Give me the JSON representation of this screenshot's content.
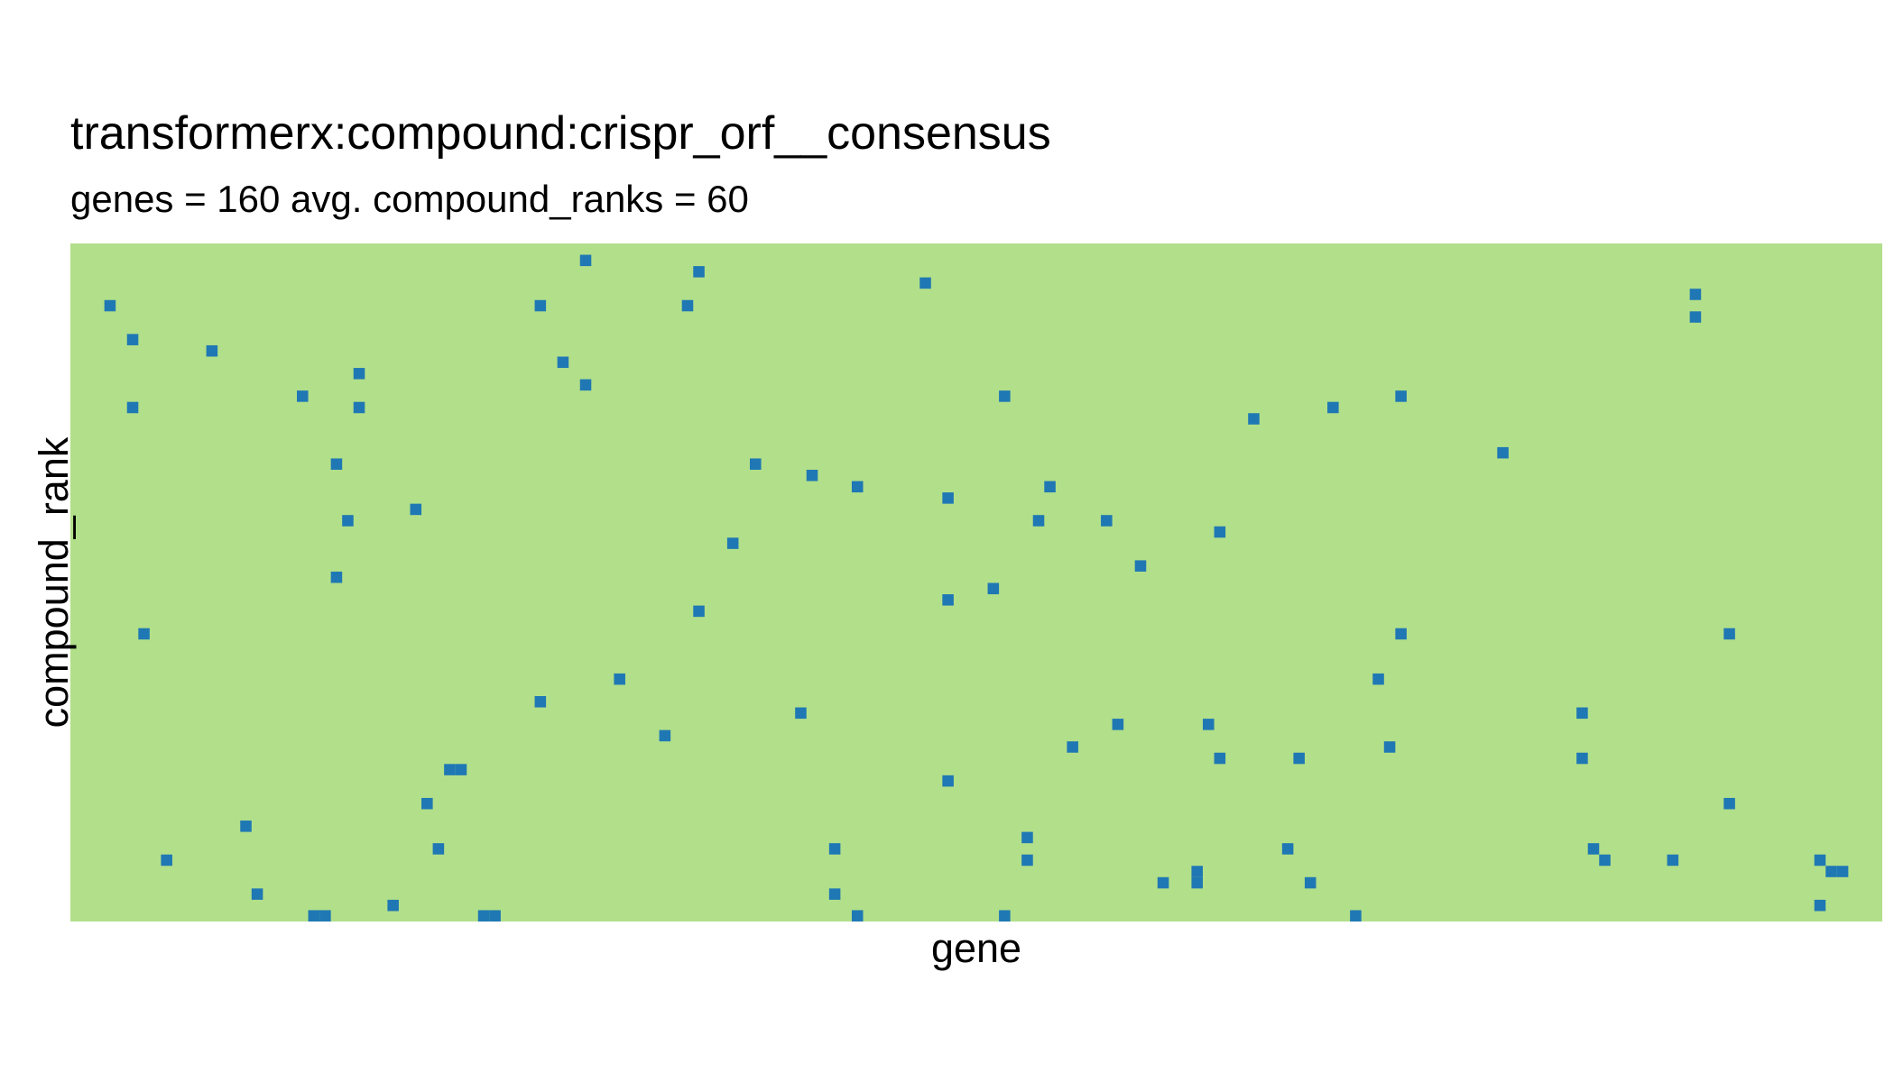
{
  "title": "transformerx:compound:crispr_orf__consensus",
  "subtitle": "genes = 160 avg. compound_ranks = 60",
  "chart_data": {
    "type": "heatmap",
    "title": "transformerx:compound:crispr_orf__consensus",
    "subtitle": "genes = 160 avg. compound_ranks = 60",
    "xlabel": "gene",
    "ylabel": "compound_rank",
    "x_range": [
      1,
      160
    ],
    "y_range": [
      1,
      60
    ],
    "grid": false,
    "legend": "none",
    "colors": {
      "background": "#b2df8a",
      "hit": "#1f78b4"
    },
    "hits": [
      [
        46,
        2
      ],
      [
        56,
        3
      ],
      [
        76,
        4
      ],
      [
        4,
        6
      ],
      [
        42,
        6
      ],
      [
        55,
        6
      ],
      [
        144,
        5
      ],
      [
        144,
        7
      ],
      [
        6,
        9
      ],
      [
        13,
        10
      ],
      [
        44,
        11
      ],
      [
        26,
        12
      ],
      [
        46,
        13
      ],
      [
        6,
        15
      ],
      [
        21,
        14
      ],
      [
        26,
        15
      ],
      [
        83,
        14
      ],
      [
        118,
        14
      ],
      [
        112,
        15
      ],
      [
        105,
        16
      ],
      [
        24,
        20
      ],
      [
        61,
        20
      ],
      [
        66,
        21
      ],
      [
        127,
        19
      ],
      [
        70,
        22
      ],
      [
        87,
        22
      ],
      [
        78,
        23
      ],
      [
        31,
        24
      ],
      [
        25,
        25
      ],
      [
        86,
        25
      ],
      [
        92,
        25
      ],
      [
        102,
        26
      ],
      [
        59,
        27
      ],
      [
        95,
        29
      ],
      [
        24,
        30
      ],
      [
        82,
        31
      ],
      [
        78,
        32
      ],
      [
        56,
        33
      ],
      [
        7,
        35
      ],
      [
        118,
        35
      ],
      [
        147,
        35
      ],
      [
        49,
        39
      ],
      [
        116,
        39
      ],
      [
        42,
        41
      ],
      [
        65,
        42
      ],
      [
        134,
        42
      ],
      [
        93,
        43
      ],
      [
        101,
        43
      ],
      [
        53,
        44
      ],
      [
        89,
        45
      ],
      [
        117,
        45
      ],
      [
        102,
        46
      ],
      [
        109,
        46
      ],
      [
        134,
        46
      ],
      [
        34,
        47
      ],
      [
        35,
        47
      ],
      [
        78,
        48
      ],
      [
        32,
        50
      ],
      [
        147,
        50
      ],
      [
        16,
        52
      ],
      [
        85,
        53
      ],
      [
        33,
        54
      ],
      [
        68,
        54
      ],
      [
        108,
        54
      ],
      [
        135,
        54
      ],
      [
        9,
        55
      ],
      [
        85,
        55
      ],
      [
        136,
        55
      ],
      [
        142,
        55
      ],
      [
        155,
        55
      ],
      [
        100,
        56
      ],
      [
        156,
        56
      ],
      [
        157,
        56
      ],
      [
        97,
        57
      ],
      [
        100,
        57
      ],
      [
        110,
        57
      ],
      [
        17,
        58
      ],
      [
        68,
        58
      ],
      [
        29,
        59
      ],
      [
        155,
        59
      ],
      [
        22,
        60
      ],
      [
        37,
        60
      ],
      [
        38,
        60
      ],
      [
        83,
        60
      ],
      [
        23,
        61
      ],
      [
        70,
        61
      ],
      [
        114,
        61
      ]
    ]
  }
}
